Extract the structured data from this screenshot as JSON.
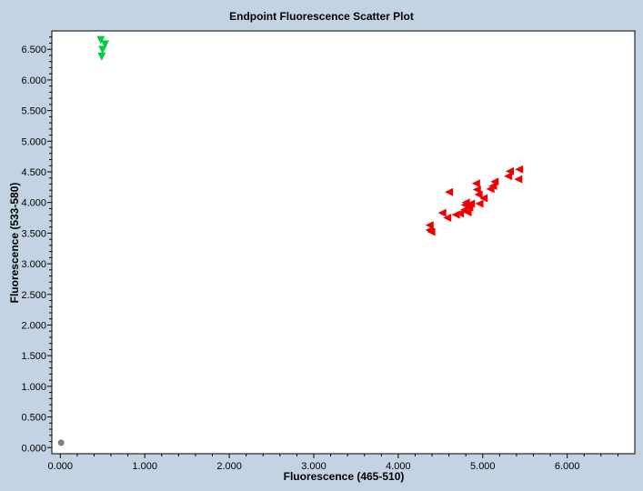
{
  "chart_data": {
    "type": "scatter",
    "title": "Endpoint Fluorescence Scatter Plot",
    "xlabel": "Fluorescence (465-510)",
    "ylabel": "Fluorescence (533-580)",
    "xlim": [
      -0.1,
      6.8
    ],
    "ylim": [
      -0.1,
      6.8
    ],
    "x_ticks": [
      "0.000",
      "1.000",
      "2.000",
      "3.000",
      "4.000",
      "5.000",
      "6.000"
    ],
    "y_ticks": [
      "0.000",
      "0.500",
      "1.000",
      "1.500",
      "2.000",
      "2.500",
      "3.000",
      "3.500",
      "4.000",
      "4.500",
      "5.000",
      "5.500",
      "6.000",
      "6.500"
    ],
    "grid": false,
    "series": [
      {
        "marker": "triangle-down",
        "color": "#00cc44",
        "points": [
          [
            0.48,
            6.65
          ],
          [
            0.53,
            6.58
          ],
          [
            0.5,
            6.49
          ],
          [
            0.49,
            6.38
          ]
        ]
      },
      {
        "marker": "triangle-left",
        "color": "#ee0000",
        "points": [
          [
            4.37,
            3.63
          ],
          [
            4.37,
            3.55
          ],
          [
            4.39,
            3.52
          ],
          [
            4.52,
            3.83
          ],
          [
            4.58,
            3.75
          ],
          [
            4.6,
            4.17
          ],
          [
            4.68,
            3.8
          ],
          [
            4.73,
            3.82
          ],
          [
            4.78,
            3.88
          ],
          [
            4.79,
            3.96
          ],
          [
            4.8,
            4.0
          ],
          [
            4.82,
            3.84
          ],
          [
            4.84,
            3.92
          ],
          [
            4.86,
            3.98
          ],
          [
            4.92,
            4.31
          ],
          [
            4.93,
            4.21
          ],
          [
            4.95,
            4.13
          ],
          [
            4.96,
            3.98
          ],
          [
            5.01,
            4.07
          ],
          [
            5.09,
            4.22
          ],
          [
            5.12,
            4.27
          ],
          [
            5.14,
            4.34
          ],
          [
            5.3,
            4.43
          ],
          [
            5.32,
            4.51
          ],
          [
            5.42,
            4.38
          ],
          [
            5.43,
            4.54
          ]
        ]
      },
      {
        "marker": "circle",
        "color": "#808080",
        "points": [
          [
            0.01,
            0.08
          ]
        ]
      }
    ]
  }
}
